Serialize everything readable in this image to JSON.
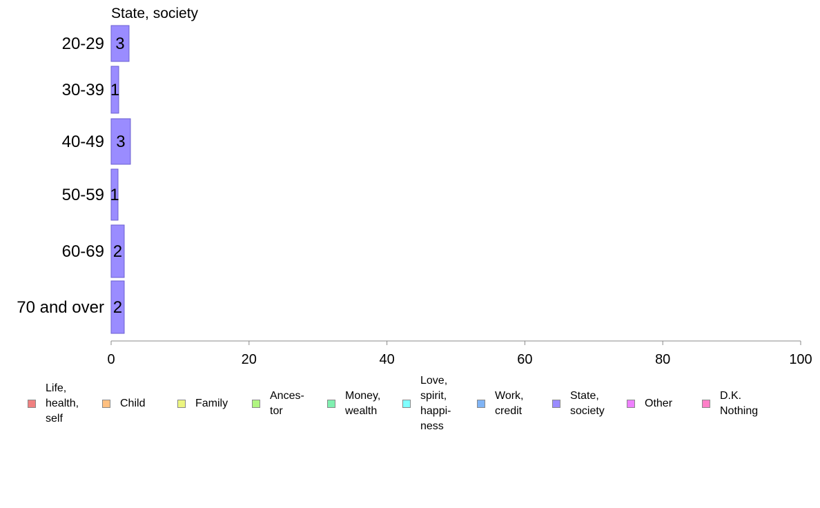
{
  "chart_data": {
    "type": "bar",
    "orientation": "horizontal",
    "title": "State, society",
    "categories": [
      "20-29",
      "30-39",
      "40-49",
      "50-59",
      "60-69",
      "70 and over"
    ],
    "series": [
      {
        "name": "State, society",
        "color": "#9a8cff",
        "values": [
          2.6,
          1.1,
          2.8,
          1.0,
          1.9,
          1.9
        ],
        "labels": [
          "3",
          "1",
          "3",
          "1",
          "2",
          "2"
        ]
      }
    ],
    "xlim": [
      0,
      100
    ],
    "xticks": [
      "0",
      "20",
      "40",
      "60",
      "80",
      "100"
    ],
    "grid": false,
    "legend_position": "bottom"
  },
  "legend": [
    {
      "label": "Life,\nhealth,\nself",
      "color": "#f08080"
    },
    {
      "label": "Child",
      "color": "#ffc080"
    },
    {
      "label": "Family",
      "color": "#ecf580"
    },
    {
      "label": "Ances-\ntor",
      "color": "#b0f580"
    },
    {
      "label": "Money,\nwealth",
      "color": "#80f0b0"
    },
    {
      "label": "Love,\nspirit,\nhappi-\nness",
      "color": "#80ffff"
    },
    {
      "label": "Work,\ncredit",
      "color": "#80b4f5"
    },
    {
      "label": "State,\nsociety",
      "color": "#9a8cff"
    },
    {
      "label": "Other",
      "color": "#ee80ff"
    },
    {
      "label": "D.K.\nNothing",
      "color": "#ff80c8"
    }
  ]
}
